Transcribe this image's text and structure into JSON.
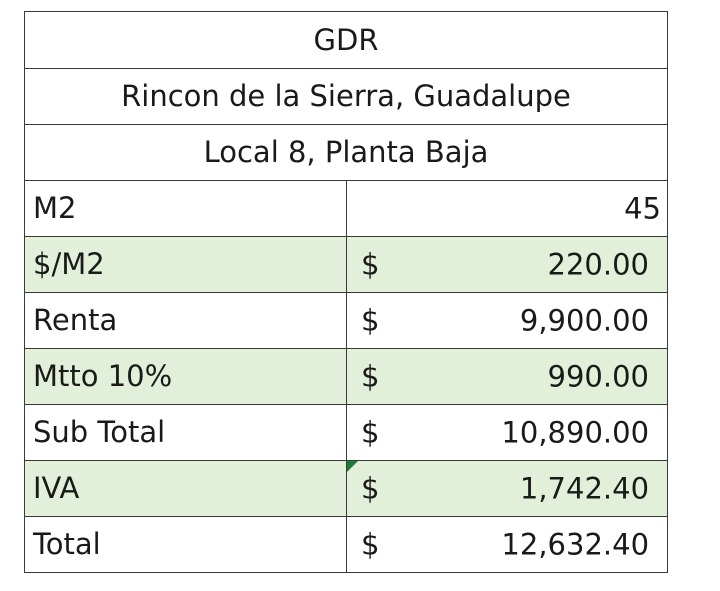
{
  "header": {
    "title": "GDR",
    "location": "Rincon de la Sierra, Guadalupe",
    "unit": "Local 8, Planta Baja"
  },
  "colors": {
    "row_highlight": "#e2f0d9",
    "grid_line": "#3a3a3a",
    "comment_flag": "#1e7b34"
  },
  "rows": [
    {
      "label": "M2",
      "currency": "",
      "value": "45"
    },
    {
      "label": "$/M2",
      "currency": "$",
      "value": "220.00"
    },
    {
      "label": "Renta",
      "currency": "$",
      "value": "9,900.00"
    },
    {
      "label": "Mtto 10%",
      "currency": "$",
      "value": "990.00"
    },
    {
      "label": "Sub Total",
      "currency": "$",
      "value": "10,890.00"
    },
    {
      "label": "IVA",
      "currency": "$",
      "value": "1,742.40"
    },
    {
      "label": "Total",
      "currency": "$",
      "value": "12,632.40"
    }
  ]
}
